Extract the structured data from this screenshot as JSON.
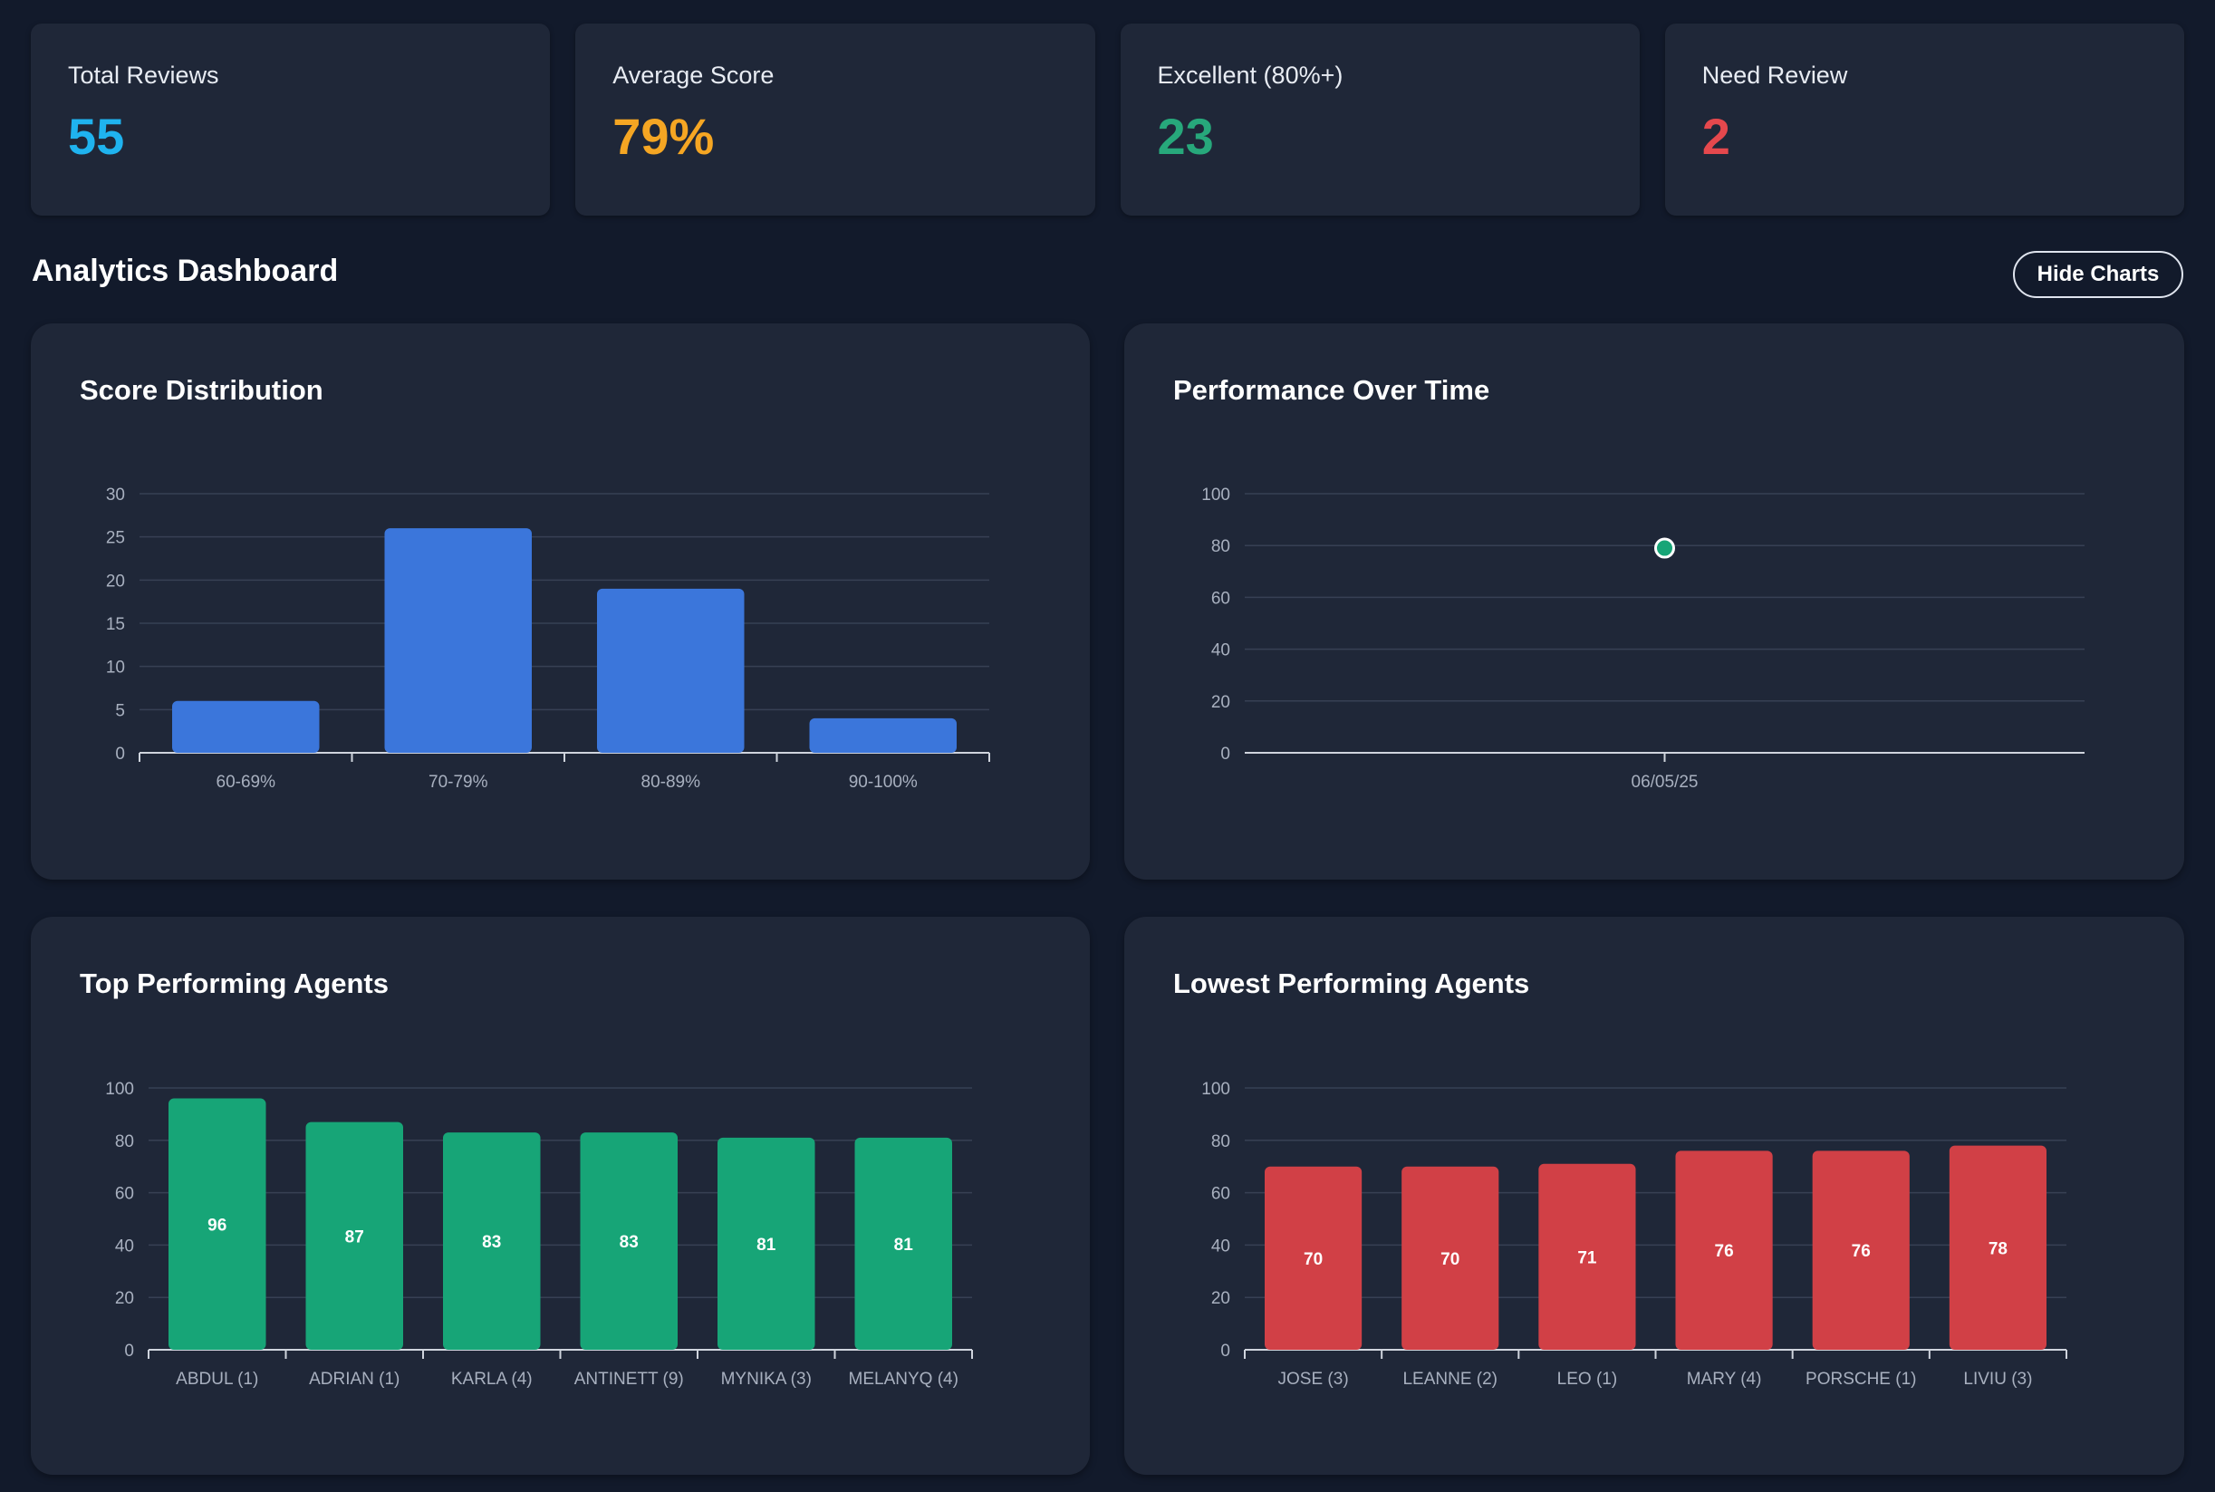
{
  "stats": [
    {
      "label": "Total Reviews",
      "value": "55",
      "color": "#1fb3ef"
    },
    {
      "label": "Average Score",
      "value": "79%",
      "color": "#f5a623"
    },
    {
      "label": "Excellent (80%+)",
      "value": "23",
      "color": "#27a87b"
    },
    {
      "label": "Need Review",
      "value": "2",
      "color": "#e5484d"
    }
  ],
  "section": {
    "title": "Analytics Dashboard",
    "toggle_label": "Hide Charts"
  },
  "colors": {
    "blue": "#3b76db",
    "green": "#17a577",
    "red": "#d14046",
    "grid": "#374054",
    "axis": "#cfd4dd"
  },
  "chart_data": [
    {
      "type": "bar",
      "title": "Score Distribution",
      "categories": [
        "60-69%",
        "70-79%",
        "80-89%",
        "90-100%"
      ],
      "values": [
        6,
        26,
        19,
        4
      ],
      "yticks": [
        0,
        5,
        10,
        15,
        20,
        25,
        30
      ],
      "ylim": [
        0,
        30
      ],
      "xlabel": "",
      "ylabel": "",
      "show_value_labels": false,
      "color": "#3b76db"
    },
    {
      "type": "line",
      "title": "Performance Over Time",
      "categories": [
        "06/05/25"
      ],
      "values": [
        79
      ],
      "yticks": [
        0,
        20,
        40,
        60,
        80,
        100
      ],
      "ylim": [
        0,
        100
      ],
      "xlabel": "",
      "ylabel": "",
      "color": "#17a577"
    },
    {
      "type": "bar",
      "title": "Top Performing Agents",
      "categories": [
        "ABDUL (1)",
        "ADRIAN (1)",
        "KARLA (4)",
        "ANTINETT (9)",
        "MYNIKA (3)",
        "MELANYQ (4)"
      ],
      "values": [
        96,
        87,
        83,
        83,
        81,
        81
      ],
      "yticks": [
        0,
        20,
        40,
        60,
        80,
        100
      ],
      "ylim": [
        0,
        100
      ],
      "xlabel": "",
      "ylabel": "",
      "show_value_labels": true,
      "color": "#17a577"
    },
    {
      "type": "bar",
      "title": "Lowest Performing Agents",
      "categories": [
        "JOSE (3)",
        "LEANNE (2)",
        "LEO (1)",
        "MARY (4)",
        "PORSCHE (1)",
        "LIVIU (3)"
      ],
      "values": [
        70,
        70,
        71,
        76,
        76,
        78
      ],
      "yticks": [
        0,
        20,
        40,
        60,
        80,
        100
      ],
      "ylim": [
        0,
        100
      ],
      "xlabel": "",
      "ylabel": "",
      "show_value_labels": true,
      "color": "#d14046"
    }
  ]
}
